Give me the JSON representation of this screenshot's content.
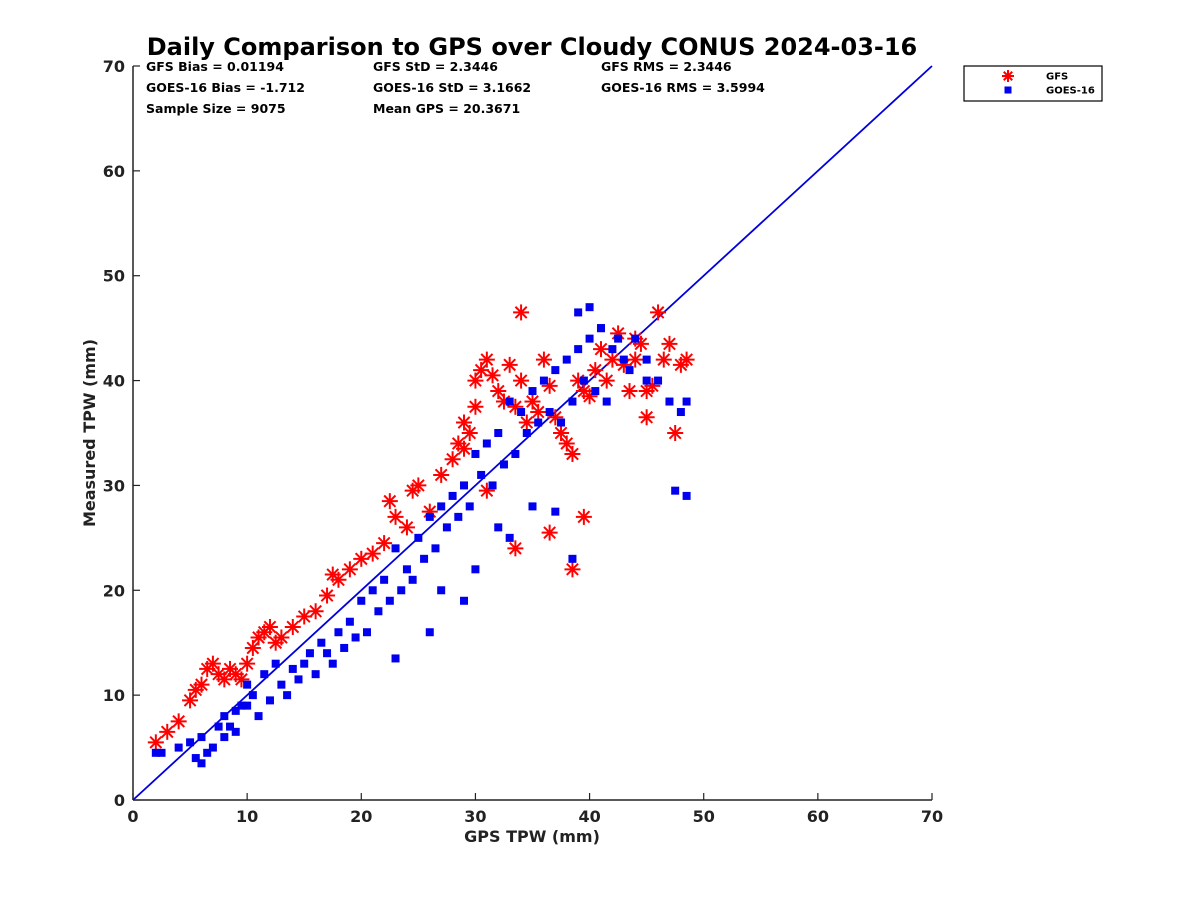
{
  "chart_data": {
    "type": "scatter",
    "title": "Daily Comparison to GPS over Cloudy CONUS 2024-03-16",
    "xlabel": "GPS TPW (mm)",
    "ylabel": "Measured TPW (mm)",
    "xlim": [
      0,
      70
    ],
    "ylim": [
      0,
      70
    ],
    "xticks": [
      "0",
      "10",
      "20",
      "30",
      "40",
      "50",
      "60",
      "70"
    ],
    "yticks": [
      "0",
      "10",
      "20",
      "30",
      "40",
      "50",
      "60",
      "70"
    ],
    "grid": false,
    "legend_position": "outside-top-right",
    "stats": [
      [
        "GFS Bias = 0.01194",
        "GFS StD = 2.3446",
        "GFS RMS = 2.3446"
      ],
      [
        "GOES-16 Bias = -1.712",
        "GOES-16 StD = 3.1662",
        "GOES-16 RMS = 3.5994"
      ],
      [
        "Sample Size = 9075",
        "Mean GPS = 20.3671",
        ""
      ]
    ],
    "reference_line": {
      "x": [
        0,
        70
      ],
      "y": [
        0,
        70
      ],
      "color": "#0000dd"
    },
    "series": [
      {
        "name": "GFS",
        "marker": "asterisk",
        "color": "#ff0000",
        "x": [
          2,
          3,
          4,
          5,
          5.5,
          6,
          6.5,
          7,
          7.5,
          8,
          8.5,
          9,
          9.5,
          10,
          10.5,
          11,
          11.5,
          12,
          12.5,
          13,
          14,
          15,
          16,
          17,
          17.5,
          18,
          19,
          20,
          21,
          22,
          22.5,
          23,
          24,
          24.5,
          25,
          26,
          27,
          28,
          28.5,
          29,
          29.5,
          30,
          30.5,
          31,
          31.5,
          32,
          32.5,
          33,
          33.5,
          34,
          34.5,
          35,
          35.5,
          36,
          36.5,
          37,
          37.5,
          38,
          38.5,
          39,
          39.5,
          40,
          40.5,
          41,
          41.5,
          42,
          42.5,
          43,
          43.5,
          44,
          44.5,
          45,
          45.5,
          46,
          46.5,
          47,
          47.5,
          48,
          48.5,
          38.5,
          33.5,
          36.5,
          39.5,
          34,
          30,
          29,
          31,
          44,
          45
        ],
        "y": [
          5.5,
          6.5,
          7.5,
          9.5,
          10.5,
          11,
          12.5,
          13,
          12,
          11.5,
          12.5,
          12,
          11.5,
          13,
          14.5,
          15.5,
          16,
          16.5,
          15,
          15.5,
          16.5,
          17.5,
          18,
          19.5,
          21.5,
          21,
          22,
          23,
          23.5,
          24.5,
          28.5,
          27,
          26,
          29.5,
          30,
          27.5,
          31,
          32.5,
          34,
          33.5,
          35,
          40,
          41,
          42,
          40.5,
          39,
          38,
          41.5,
          37.5,
          40,
          36,
          38,
          37,
          42,
          39.5,
          36.5,
          35,
          34,
          33,
          40,
          39,
          38.5,
          41,
          43,
          40,
          42,
          44.5,
          41.5,
          39,
          42,
          43.5,
          39,
          39.5,
          46.5,
          42,
          43.5,
          35,
          41.5,
          42,
          22,
          24,
          25.5,
          27,
          46.5,
          37.5,
          36,
          29.5,
          44,
          36.5
        ]
      },
      {
        "name": "GOES-16",
        "marker": "square",
        "color": "#0000ee",
        "x": [
          2,
          2.5,
          4,
          5,
          5.5,
          6,
          6,
          6.5,
          7,
          7.5,
          8,
          8,
          8.5,
          9,
          9,
          9.5,
          10,
          10,
          10.5,
          11,
          11.5,
          12,
          12.5,
          13,
          13.5,
          14,
          14.5,
          15,
          15.5,
          16,
          16.5,
          17,
          17.5,
          18,
          18.5,
          19,
          19.5,
          20,
          20.5,
          21,
          21.5,
          22,
          22.5,
          23,
          23.5,
          24,
          24.5,
          25,
          25.5,
          26,
          26.5,
          27,
          27.5,
          28,
          28.5,
          29,
          29.5,
          30,
          30.5,
          31,
          31.5,
          32,
          32.5,
          33,
          33.5,
          34,
          34.5,
          35,
          35.5,
          36,
          36.5,
          37,
          37.5,
          38,
          38.5,
          39,
          39.5,
          40,
          40.5,
          41,
          41.5,
          42,
          42.5,
          43,
          43.5,
          44,
          45,
          46,
          47,
          48,
          48.5,
          39,
          40,
          41,
          45,
          47.5,
          48.5,
          23,
          30,
          32,
          33,
          35,
          37,
          38.5,
          29,
          27,
          26
        ],
        "y": [
          4.5,
          4.5,
          5,
          5.5,
          4,
          3.5,
          6,
          4.5,
          5,
          7,
          6,
          8,
          7,
          8.5,
          6.5,
          9,
          9,
          11,
          10,
          8,
          12,
          9.5,
          13,
          11,
          10,
          12.5,
          11.5,
          13,
          14,
          12,
          15,
          14,
          13,
          16,
          14.5,
          17,
          15.5,
          19,
          16,
          20,
          18,
          21,
          19,
          24,
          20,
          22,
          21,
          25,
          23,
          27,
          24,
          28,
          26,
          29,
          27,
          30,
          28,
          33,
          31,
          34,
          30,
          35,
          32,
          38,
          33,
          37,
          35,
          39,
          36,
          40,
          37,
          41,
          36,
          42,
          38,
          43,
          40,
          44,
          39,
          45,
          38,
          43,
          44,
          42,
          41,
          44,
          42,
          40,
          38,
          37,
          38,
          46.5,
          47,
          45,
          40,
          29.5,
          29,
          13.5,
          22,
          26,
          25,
          28,
          27.5,
          23,
          19,
          20,
          16
        ]
      }
    ]
  }
}
